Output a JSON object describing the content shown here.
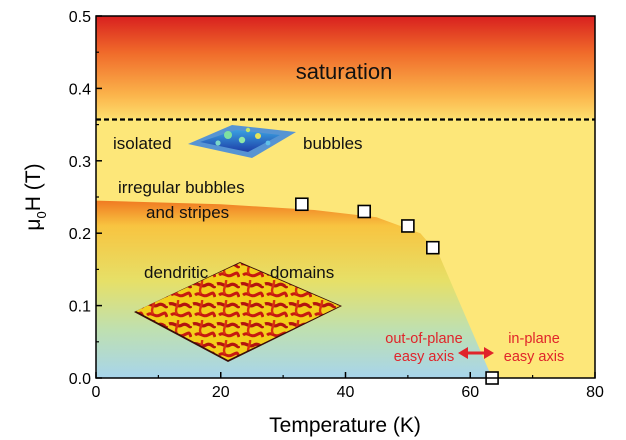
{
  "chart_data": {
    "type": "scatter",
    "xlabel": "Temperature (K)",
    "ylabel_main": "μ",
    "ylabel_sub": "0",
    "ylabel_rest": "H (T)",
    "xlim": [
      0,
      80
    ],
    "ylim": [
      0,
      0.5
    ],
    "x_ticks": [
      0,
      20,
      40,
      60,
      80
    ],
    "y_ticks": [
      0.0,
      0.1,
      0.2,
      0.3,
      0.4,
      0.5
    ],
    "x_tick_labels": [
      "0",
      "20",
      "40",
      "60",
      "80"
    ],
    "y_tick_labels": [
      "0.0",
      "0.1",
      "0.2",
      "0.3",
      "0.4",
      "0.5"
    ],
    "points": [
      {
        "x": 33,
        "y": 0.24
      },
      {
        "x": 43,
        "y": 0.23
      },
      {
        "x": 50,
        "y": 0.21
      },
      {
        "x": 54,
        "y": 0.18
      },
      {
        "x": 63.5,
        "y": 0.0
      }
    ],
    "saturation_line_y": 0.357,
    "boundary_curve": [
      [
        0,
        0.245
      ],
      [
        20,
        0.24
      ],
      [
        35,
        0.232
      ],
      [
        45,
        0.222
      ],
      [
        52,
        0.2
      ],
      [
        55,
        0.17
      ],
      [
        58,
        0.11
      ],
      [
        61,
        0.05
      ],
      [
        63.5,
        0.0
      ]
    ],
    "grid": false,
    "region_labels": {
      "saturation": "saturation",
      "isolated": "isolated",
      "bubbles": "bubbles",
      "irregular_line1": "irregular bubbles",
      "irregular_line2": "and stripes",
      "dendritic": "dendritic",
      "domains": "domains",
      "oop_line1": "out-of-plane",
      "oop_line2": "easy axis",
      "ip_line1": "in-plane",
      "ip_line2": "easy axis"
    },
    "colors": {
      "annotation_red": "#e0242a",
      "marker_fill": "#ffffff",
      "marker_stroke": "#000000"
    }
  }
}
